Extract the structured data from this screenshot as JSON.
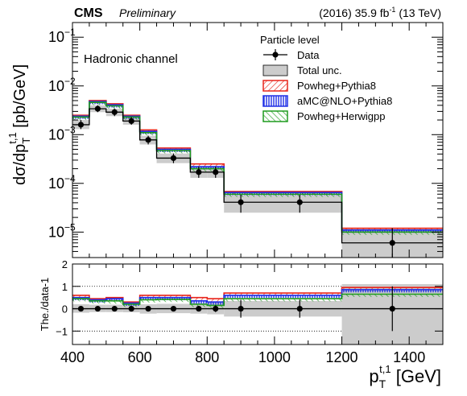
{
  "header": {
    "cms": "CMS",
    "preliminary": "Preliminary",
    "lumi_pre": "(2016) 35.9 fb",
    "lumi_sup": "-1",
    "lumi_post": " (13 TeV)"
  },
  "channel_label": "Hadronic channel",
  "legend": {
    "title": "Particle level",
    "entries": [
      {
        "label": "Data",
        "style": "marker"
      },
      {
        "label": "Total unc.",
        "style": "box"
      },
      {
        "label": "Powheg+Pythia8",
        "style": "red-hatch"
      },
      {
        "label": "aMC@NLO+Pythia8",
        "style": "blue-hatch"
      },
      {
        "label": "Powheg+Herwigpp",
        "style": "green-hatch"
      }
    ]
  },
  "colors": {
    "powheg_pythia8": "#e8251b",
    "amcnlo_pythia8": "#1f2fe6",
    "powheg_herwigpp": "#1e9b1e",
    "unc_fill": "#cccccc"
  },
  "chart_data": [
    {
      "type": "bar",
      "panel": "main",
      "ylabel_main": "dσ/dp",
      "ylabel_sub": "T",
      "ylabel_sup": "t,1",
      "ylabel_unit": " [pb/GeV]",
      "yscale": "log",
      "ylim": [
        3e-06,
        0.2
      ],
      "xlim": [
        400,
        1500
      ],
      "y_ticks": [
        {
          "value": 1e-05,
          "label": "10",
          "exp": "−5"
        },
        {
          "value": 0.0001,
          "label": "10",
          "exp": "−4"
        },
        {
          "value": 0.001,
          "label": "10",
          "exp": "−3"
        },
        {
          "value": 0.01,
          "label": "10",
          "exp": "−2"
        },
        {
          "value": 0.1,
          "label": "10",
          "exp": "−1"
        }
      ],
      "bin_edges": [
        400,
        450,
        500,
        550,
        600,
        650,
        750,
        800,
        850,
        950,
        1200,
        1500
      ],
      "data": {
        "x": [
          425,
          475,
          525,
          575,
          625,
          700,
          775,
          825,
          900,
          1075,
          1350
        ],
        "y": [
          0.0016,
          0.0034,
          0.0029,
          0.0019,
          0.00078,
          0.00033,
          0.00017,
          0.00017,
          4.1e-05,
          4.1e-05,
          6e-06
        ],
        "x_centers_note": ""
      },
      "total_unc": {
        "lo": [
          0.0013,
          0.0029,
          0.0024,
          0.0016,
          0.00063,
          0.00026,
          0.00013,
          0.00013,
          2.5e-05,
          2.5e-05,
          1e-07
        ],
        "hi": [
          0.002,
          0.004,
          0.0034,
          0.0023,
          0.00095,
          0.00041,
          0.00022,
          0.00022,
          5.8e-05,
          5.8e-05,
          1.2e-05
        ]
      },
      "series": [
        {
          "name": "Powheg+Pythia8",
          "values": [
            0.0025,
            0.005,
            0.0043,
            0.0025,
            0.00125,
            0.00053,
            0.00025,
            0.00025,
            6.8e-05,
            6.8e-05,
            1.2e-05
          ]
        },
        {
          "name": "aMC@NLO+Pythia8",
          "values": [
            0.0024,
            0.0048,
            0.0041,
            0.0024,
            0.00117,
            0.0005,
            0.00022,
            0.00022,
            6.5e-05,
            6.5e-05,
            1.1e-05
          ]
        },
        {
          "name": "Powheg+Herwigpp",
          "values": [
            0.0023,
            0.0046,
            0.0039,
            0.0023,
            0.0011,
            0.00047,
            0.0002,
            0.0002,
            6e-05,
            6e-05,
            1e-05
          ]
        }
      ]
    },
    {
      "type": "bar",
      "panel": "ratio",
      "ylabel": "The./data-1",
      "xlabel_main": "p",
      "xlabel_sub": "T",
      "xlabel_sup": "t,1",
      "xlabel_unit": " [GeV]",
      "ylim": [
        -1.6,
        2
      ],
      "xlim": [
        400,
        1500
      ],
      "y_ticks": [
        -1,
        0,
        1,
        2
      ],
      "x_ticks": [
        400,
        600,
        800,
        1000,
        1200,
        1400
      ],
      "bin_edges": [
        400,
        450,
        500,
        550,
        600,
        650,
        750,
        800,
        850,
        950,
        1200,
        1500
      ],
      "data": {
        "x": [
          425,
          475,
          525,
          575,
          625,
          700,
          775,
          825,
          900,
          1075,
          1350
        ],
        "y": [
          0,
          0,
          0,
          0,
          0,
          0,
          0,
          0,
          0,
          0,
          0
        ],
        "err": [
          0.05,
          0.05,
          0.05,
          0.05,
          0.05,
          0.1,
          0.1,
          0.15,
          0.4,
          0.4,
          1.0
        ]
      },
      "total_unc": {
        "lo": [
          -0.18,
          -0.15,
          -0.15,
          -0.16,
          -0.22,
          -0.2,
          -0.22,
          -0.25,
          -0.35,
          -0.35,
          -1.6
        ],
        "hi": [
          0.2,
          0.18,
          0.18,
          0.18,
          0.2,
          0.22,
          0.25,
          0.28,
          0.35,
          0.35,
          1.1
        ]
      },
      "series": [
        {
          "name": "Powheg+Pythia8",
          "values": [
            0.6,
            0.45,
            0.5,
            0.3,
            0.6,
            0.6,
            0.5,
            0.45,
            0.7,
            0.7,
            0.95
          ]
        },
        {
          "name": "aMC@NLO+Pythia8",
          "values": [
            0.5,
            0.4,
            0.45,
            0.25,
            0.5,
            0.5,
            0.35,
            0.3,
            0.6,
            0.6,
            0.85
          ]
        },
        {
          "name": "Powheg+Herwigpp",
          "values": [
            0.45,
            0.35,
            0.35,
            0.2,
            0.4,
            0.42,
            0.2,
            0.15,
            0.45,
            0.45,
            0.65
          ]
        }
      ],
      "dotted_lines": [
        -1,
        1
      ]
    }
  ]
}
